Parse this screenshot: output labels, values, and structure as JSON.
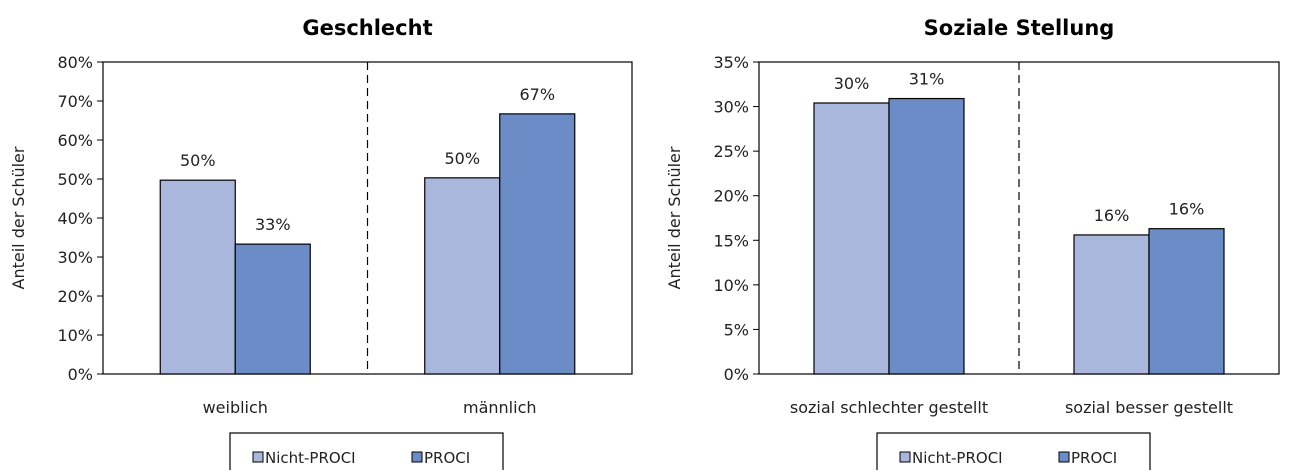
{
  "colors": {
    "nicht_proci": "#aab7dd",
    "proci": "#6b8cc6",
    "axis": "#000000",
    "divider": "#000000"
  },
  "chart_data": [
    {
      "type": "bar",
      "title": "Geschlecht",
      "ylabel": "Anteil der Schüler",
      "ylim": [
        0,
        80
      ],
      "yticks": [
        "0%",
        "10%",
        "20%",
        "30%",
        "40%",
        "50%",
        "60%",
        "70%",
        "80%"
      ],
      "categories": [
        "weiblich",
        "männlich"
      ],
      "series": [
        {
          "name": "Nicht-PROCI",
          "values": [
            49.7,
            50.3
          ],
          "labels": [
            "50%",
            "50%"
          ]
        },
        {
          "name": "PROCI",
          "values": [
            33.3,
            66.7
          ],
          "labels": [
            "33%",
            "67%"
          ]
        }
      ],
      "grid": false,
      "legend_position": "bottom"
    },
    {
      "type": "bar",
      "title": "Soziale Stellung",
      "ylabel": "Anteil der Schüler",
      "ylim": [
        0,
        35
      ],
      "yticks": [
        "0%",
        "5%",
        "10%",
        "15%",
        "20%",
        "25%",
        "30%",
        "35%"
      ],
      "categories": [
        "sozial schlechter gestellt",
        "sozial besser gestellt"
      ],
      "series": [
        {
          "name": "Nicht-PROCI",
          "values": [
            30.4,
            15.6
          ],
          "labels": [
            "30%",
            "16%"
          ]
        },
        {
          "name": "PROCI",
          "values": [
            30.9,
            16.3
          ],
          "labels": [
            "31%",
            "16%"
          ]
        }
      ],
      "grid": false,
      "legend_position": "bottom"
    }
  ]
}
